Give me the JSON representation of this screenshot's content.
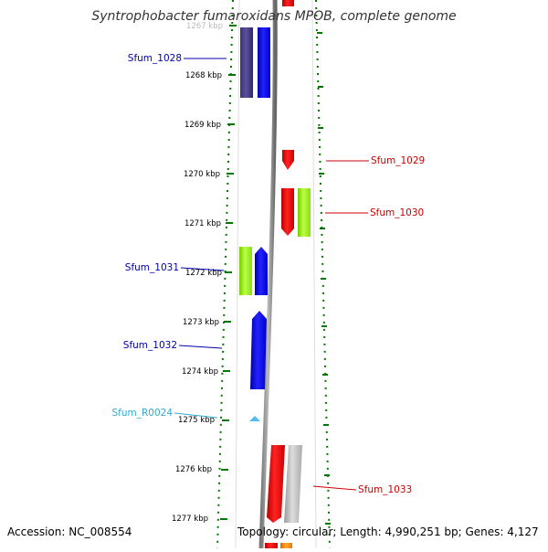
{
  "title": "Syntrophobacter fumaroxidans MPOB, complete genome",
  "accession_text": "Accession: NC_008554",
  "topology_text": "Topology: circular; Length: 4,990,251 bp; Genes: 4,127",
  "ruler": {
    "labels": [
      "1267 kbp",
      "1268 kbp",
      "1269 kbp",
      "1270 kbp",
      "1271 kbp",
      "1272 kbp",
      "1273 kbp",
      "1274 kbp",
      "1275 kbp",
      "1276 kbp",
      "1277 kbp"
    ]
  },
  "gene_labels": {
    "sfum_1028": "Sfum_1028",
    "sfum_1029": "Sfum_1029",
    "sfum_1030": "Sfum_1030",
    "sfum_1031": "Sfum_1031",
    "sfum_1032": "Sfum_1032",
    "sfum_r0024": "Sfum_R0024",
    "sfum_1033": "Sfum_1033"
  },
  "colors": {
    "left_label": "#0000aa",
    "right_label": "#cc0000",
    "rna_label": "#33aacc",
    "track_dots": "#007700",
    "gene_blue": "#0000ee",
    "gene_dark_blue": "#4a3f8a",
    "gene_red": "#ee0000",
    "gene_green": "#99ee22",
    "gene_gray": "#bbbbbb",
    "gene_orange": "#ff8800",
    "rna_cyan": "#55bbee"
  }
}
